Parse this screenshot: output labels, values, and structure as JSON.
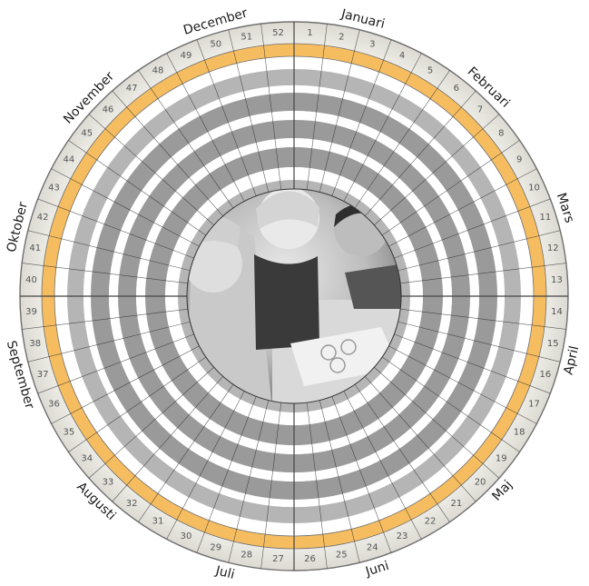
{
  "wheel": {
    "months": [
      "Januari",
      "Februari",
      "Mars",
      "April",
      "Maj",
      "Juni",
      "Juli",
      "Augusti",
      "September",
      "Oktober",
      "November",
      "December"
    ],
    "weeks": [
      "1",
      "2",
      "3",
      "4",
      "5",
      "6",
      "7",
      "8",
      "9",
      "10",
      "11",
      "12",
      "13",
      "14",
      "15",
      "16",
      "17",
      "18",
      "19",
      "20",
      "21",
      "22",
      "23",
      "24",
      "25",
      "26",
      "27",
      "28",
      "29",
      "30",
      "31",
      "32",
      "33",
      "34",
      "35",
      "36",
      "37",
      "38",
      "39",
      "40",
      "41",
      "42",
      "43",
      "44",
      "45",
      "46",
      "47",
      "48",
      "49",
      "50",
      "51",
      "52"
    ],
    "colors": {
      "accent_ring": "#f6bd60",
      "outer_band": "#e6e4dc",
      "ring_dark": "#9a9a9a",
      "ring_mid": "#b5b5b5",
      "ring_light": "#ffffff",
      "lines": "#2b2b2b"
    },
    "center_image": "black-and-white photo of smiling children at a table"
  }
}
